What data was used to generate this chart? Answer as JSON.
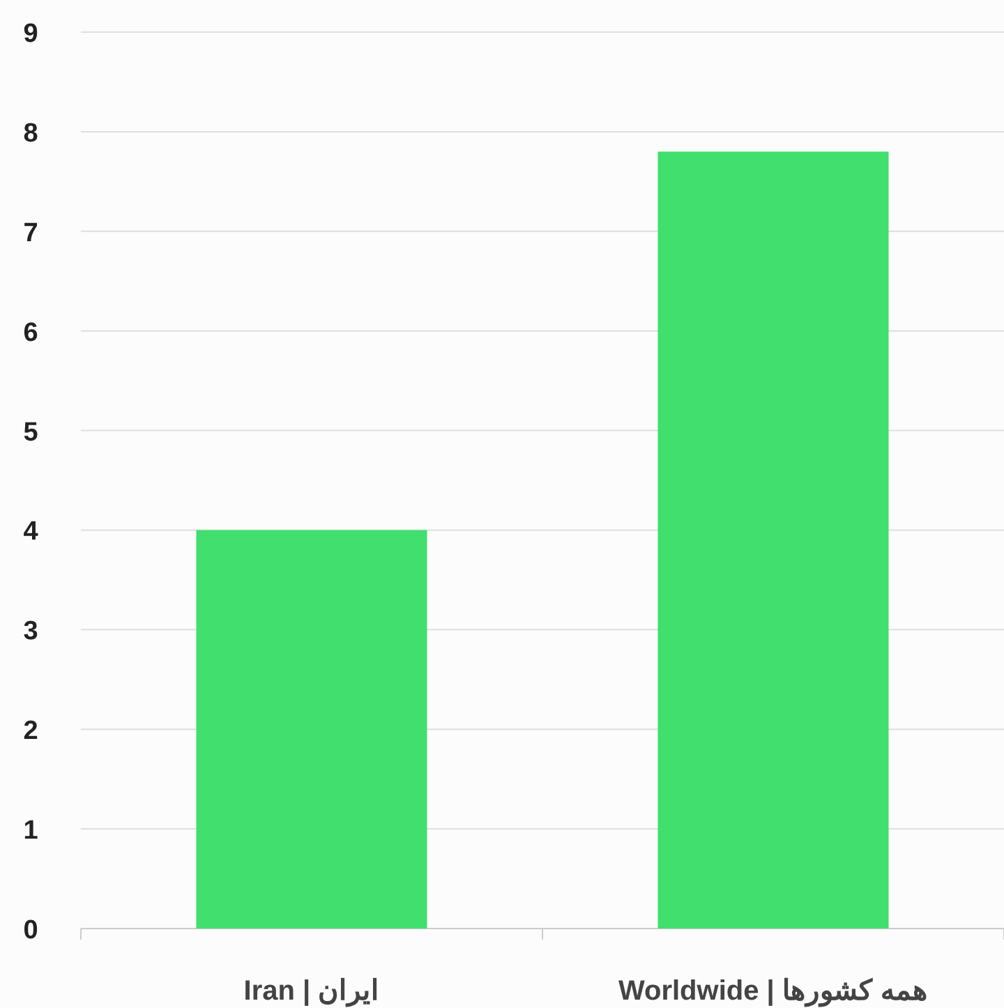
{
  "chart_data": {
    "type": "bar",
    "categories": [
      "ایران | Iran",
      "همه کشورها | Worldwide"
    ],
    "values": [
      4,
      7.8
    ],
    "color": "#41df6e",
    "ylim": [
      0,
      9
    ],
    "yticks": [
      0,
      1,
      2,
      3,
      4,
      5,
      6,
      7,
      8,
      9
    ],
    "grid": "y"
  }
}
